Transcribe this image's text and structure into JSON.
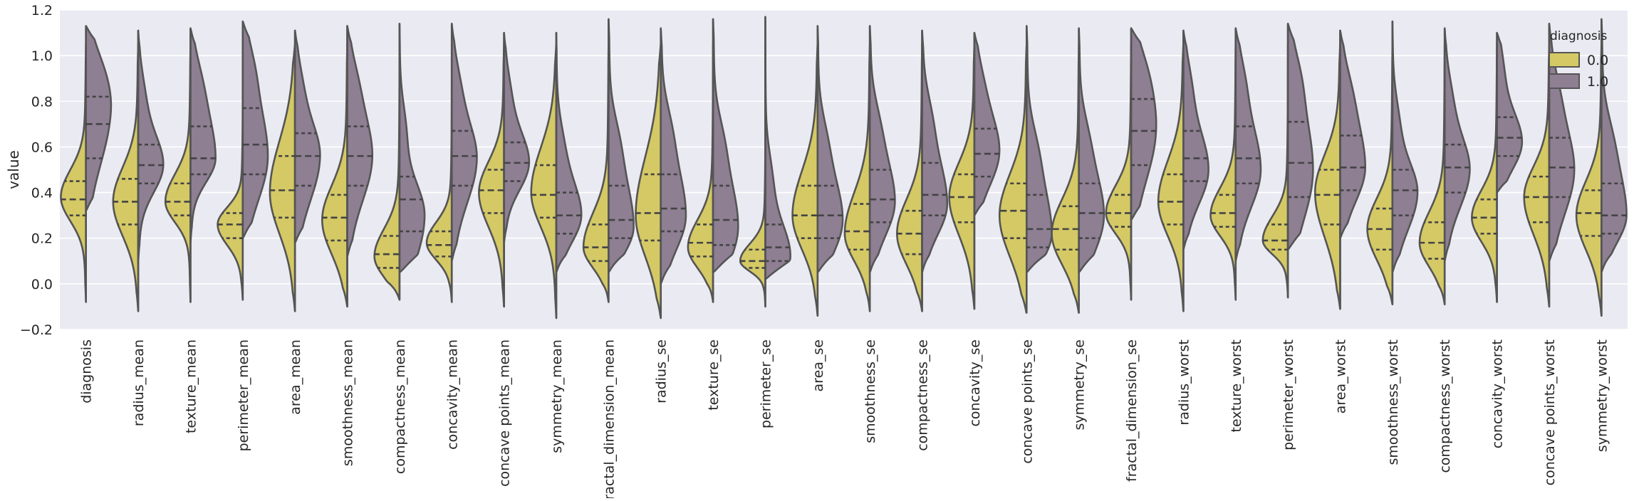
{
  "chart_data": {
    "type": "violin",
    "title": "",
    "xlabel": "",
    "ylabel": "value",
    "ylim": [
      -0.2,
      1.2
    ],
    "yticks": [
      "−0.2",
      "0.0",
      "0.2",
      "0.4",
      "0.6",
      "0.8",
      "1.0",
      "1.2"
    ],
    "grid": true,
    "split": true,
    "inner": "quartile",
    "legend": {
      "title": "diagnosis",
      "position": "top-right",
      "entries": [
        {
          "label": "0.0",
          "color": "#d4c965"
        },
        {
          "label": "1.0",
          "color": "#8e7f93"
        }
      ]
    },
    "colors": {
      "plot_background": "#eaeaf2",
      "grid": "#ffffff",
      "outline": "#555555",
      "quartile_line": "#444444"
    },
    "categories": [
      "diagnosis",
      "radius_mean",
      "texture_mean",
      "perimeter_mean",
      "area_mean",
      "smoothness_mean",
      "compactness_mean",
      "concavity_mean",
      "concave points_mean",
      "symmetry_mean",
      "fractal_dimension_mean",
      "radius_se",
      "texture_se",
      "perimeter_se",
      "area_se",
      "smoothness_se",
      "compactness_se",
      "concavity_se",
      "concave points_se",
      "symmetry_se",
      "fractal_dimension_se",
      "radius_worst",
      "texture_worst",
      "perimeter_worst",
      "area_worst",
      "smoothness_worst",
      "compactness_worst",
      "concavity_worst",
      "concave points_worst",
      "symmetry_worst"
    ],
    "series": [
      {
        "name": "0.0",
        "color": "#d4c965",
        "violins": [
          {
            "min": -0.08,
            "q1": 0.3,
            "median": 0.37,
            "q3": 0.45,
            "peak": 0.38
          },
          {
            "min": -0.12,
            "q1": 0.26,
            "median": 0.36,
            "q3": 0.46,
            "peak": 0.36
          },
          {
            "min": -0.08,
            "q1": 0.3,
            "median": 0.36,
            "q3": 0.44,
            "peak": 0.36
          },
          {
            "min": -0.07,
            "q1": 0.2,
            "median": 0.26,
            "q3": 0.31,
            "peak": 0.26
          },
          {
            "min": -0.12,
            "q1": 0.29,
            "median": 0.41,
            "q3": 0.56,
            "peak": 0.4
          },
          {
            "min": -0.1,
            "q1": 0.19,
            "median": 0.29,
            "q3": 0.39,
            "peak": 0.28
          },
          {
            "min": -0.07,
            "q1": 0.07,
            "median": 0.13,
            "q3": 0.21,
            "peak": 0.12
          },
          {
            "min": -0.08,
            "q1": 0.12,
            "median": 0.17,
            "q3": 0.23,
            "peak": 0.18
          },
          {
            "min": -0.1,
            "q1": 0.31,
            "median": 0.41,
            "q3": 0.5,
            "peak": 0.4
          },
          {
            "min": -0.15,
            "q1": 0.29,
            "median": 0.39,
            "q3": 0.52,
            "peak": 0.4
          },
          {
            "min": -0.08,
            "q1": 0.1,
            "median": 0.16,
            "q3": 0.26,
            "peak": 0.16
          },
          {
            "min": -0.15,
            "q1": 0.19,
            "median": 0.31,
            "q3": 0.48,
            "peak": 0.3
          },
          {
            "min": -0.08,
            "q1": 0.12,
            "median": 0.18,
            "q3": 0.26,
            "peak": 0.16
          },
          {
            "min": -0.1,
            "q1": 0.07,
            "median": 0.1,
            "q3": 0.15,
            "peak": 0.1
          },
          {
            "min": -0.14,
            "q1": 0.2,
            "median": 0.3,
            "q3": 0.43,
            "peak": 0.3
          },
          {
            "min": -0.12,
            "q1": 0.15,
            "median": 0.23,
            "q3": 0.35,
            "peak": 0.22
          },
          {
            "min": -0.12,
            "q1": 0.13,
            "median": 0.22,
            "q3": 0.32,
            "peak": 0.22
          },
          {
            "min": -0.11,
            "q1": 0.27,
            "median": 0.38,
            "q3": 0.48,
            "peak": 0.38
          },
          {
            "min": -0.13,
            "q1": 0.2,
            "median": 0.32,
            "q3": 0.44,
            "peak": 0.3
          },
          {
            "min": -0.13,
            "q1": 0.15,
            "median": 0.24,
            "q3": 0.34,
            "peak": 0.22
          },
          {
            "min": -0.07,
            "q1": 0.25,
            "median": 0.31,
            "q3": 0.39,
            "peak": 0.31
          },
          {
            "min": -0.12,
            "q1": 0.26,
            "median": 0.36,
            "q3": 0.48,
            "peak": 0.36
          },
          {
            "min": -0.07,
            "q1": 0.25,
            "median": 0.31,
            "q3": 0.39,
            "peak": 0.3
          },
          {
            "min": -0.06,
            "q1": 0.15,
            "median": 0.19,
            "q3": 0.26,
            "peak": 0.19
          },
          {
            "min": -0.11,
            "q1": 0.26,
            "median": 0.39,
            "q3": 0.5,
            "peak": 0.4
          },
          {
            "min": -0.09,
            "q1": 0.15,
            "median": 0.24,
            "q3": 0.33,
            "peak": 0.24
          },
          {
            "min": -0.09,
            "q1": 0.11,
            "median": 0.18,
            "q3": 0.27,
            "peak": 0.18
          },
          {
            "min": -0.08,
            "q1": 0.22,
            "median": 0.29,
            "q3": 0.37,
            "peak": 0.29
          },
          {
            "min": -0.1,
            "q1": 0.27,
            "median": 0.38,
            "q3": 0.47,
            "peak": 0.38
          },
          {
            "min": -0.14,
            "q1": 0.21,
            "median": 0.31,
            "q3": 0.41,
            "peak": 0.3
          }
        ]
      },
      {
        "name": "1.0",
        "color": "#8e7f93",
        "violins": [
          {
            "min": 0.32,
            "q1": 0.55,
            "median": 0.7,
            "q3": 0.82,
            "peak": 0.75,
            "max": 1.13
          },
          {
            "min": 0.1,
            "q1": 0.44,
            "median": 0.52,
            "q3": 0.61,
            "peak": 0.52,
            "max": 1.11
          },
          {
            "min": 0.18,
            "q1": 0.48,
            "median": 0.55,
            "q3": 0.69,
            "peak": 0.55,
            "max": 1.12
          },
          {
            "min": 0.2,
            "q1": 0.48,
            "median": 0.61,
            "q3": 0.77,
            "peak": 0.56,
            "max": 1.15
          },
          {
            "min": 0.18,
            "q1": 0.43,
            "median": 0.56,
            "q3": 0.66,
            "peak": 0.56,
            "max": 1.11
          },
          {
            "min": 0.12,
            "q1": 0.43,
            "median": 0.56,
            "q3": 0.69,
            "peak": 0.56,
            "max": 1.13
          },
          {
            "min": 0.05,
            "q1": 0.23,
            "median": 0.37,
            "q3": 0.47,
            "peak": 0.3,
            "max": 1.14
          },
          {
            "min": 0.1,
            "q1": 0.43,
            "median": 0.56,
            "q3": 0.67,
            "peak": 0.55,
            "max": 1.14
          },
          {
            "min": 0.18,
            "q1": 0.45,
            "median": 0.53,
            "q3": 0.62,
            "peak": 0.53,
            "max": 1.1
          },
          {
            "min": 0.05,
            "q1": 0.22,
            "median": 0.3,
            "q3": 0.4,
            "peak": 0.3,
            "max": 1.1
          },
          {
            "min": 0.05,
            "q1": 0.2,
            "median": 0.28,
            "q3": 0.43,
            "peak": 0.25,
            "max": 1.16
          },
          {
            "min": 0.0,
            "q1": 0.23,
            "median": 0.33,
            "q3": 0.48,
            "peak": 0.3,
            "max": 1.12
          },
          {
            "min": 0.05,
            "q1": 0.17,
            "median": 0.28,
            "q3": 0.43,
            "peak": 0.25,
            "max": 1.16
          },
          {
            "min": 0.02,
            "q1": 0.1,
            "median": 0.16,
            "q3": 0.26,
            "peak": 0.12,
            "max": 1.17
          },
          {
            "min": 0.05,
            "q1": 0.2,
            "median": 0.3,
            "q3": 0.43,
            "peak": 0.28,
            "max": 1.13
          },
          {
            "min": 0.05,
            "q1": 0.27,
            "median": 0.37,
            "q3": 0.5,
            "peak": 0.36,
            "max": 1.13
          },
          {
            "min": 0.05,
            "q1": 0.3,
            "median": 0.39,
            "q3": 0.53,
            "peak": 0.35,
            "max": 1.11
          },
          {
            "min": 0.3,
            "q1": 0.47,
            "median": 0.57,
            "q3": 0.68,
            "peak": 0.58,
            "max": 1.1
          },
          {
            "min": 0.05,
            "q1": 0.16,
            "median": 0.24,
            "q3": 0.39,
            "peak": 0.22,
            "max": 1.13
          },
          {
            "min": 0.05,
            "q1": 0.2,
            "median": 0.31,
            "q3": 0.44,
            "peak": 0.3,
            "max": 1.12
          },
          {
            "min": 0.28,
            "q1": 0.52,
            "median": 0.67,
            "q3": 0.81,
            "peak": 0.68,
            "max": 1.12
          },
          {
            "min": 0.15,
            "q1": 0.45,
            "median": 0.55,
            "q3": 0.67,
            "peak": 0.5,
            "max": 1.11
          },
          {
            "min": 0.1,
            "q1": 0.44,
            "median": 0.55,
            "q3": 0.69,
            "peak": 0.5,
            "max": 1.12
          },
          {
            "min": 0.15,
            "q1": 0.38,
            "median": 0.53,
            "q3": 0.71,
            "peak": 0.5,
            "max": 1.14
          },
          {
            "min": 0.2,
            "q1": 0.41,
            "median": 0.51,
            "q3": 0.65,
            "peak": 0.51,
            "max": 1.11
          },
          {
            "min": 0.05,
            "q1": 0.3,
            "median": 0.41,
            "q3": 0.5,
            "peak": 0.4,
            "max": 1.15
          },
          {
            "min": 0.1,
            "q1": 0.4,
            "median": 0.51,
            "q3": 0.61,
            "peak": 0.5,
            "max": 1.12
          },
          {
            "min": 0.4,
            "q1": 0.56,
            "median": 0.64,
            "q3": 0.73,
            "peak": 0.62,
            "max": 1.1
          },
          {
            "min": 0.1,
            "q1": 0.38,
            "median": 0.51,
            "q3": 0.64,
            "peak": 0.5,
            "max": 1.14
          },
          {
            "min": 0.05,
            "q1": 0.22,
            "median": 0.3,
            "q3": 0.44,
            "peak": 0.3,
            "max": 1.16
          }
        ]
      }
    ]
  }
}
